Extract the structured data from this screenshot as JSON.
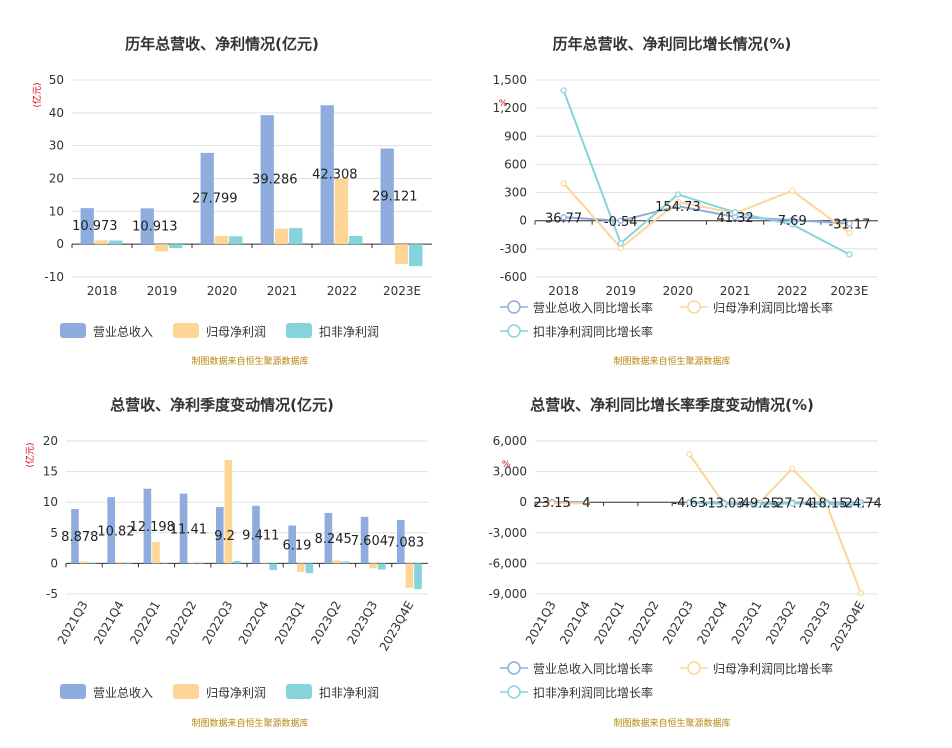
{
  "colors": {
    "revenue": "#8eacdd",
    "netprofit": "#fdd597",
    "deducted": "#85d4db",
    "grid": "#e0e0e0",
    "axis": "#333333",
    "source": "#b8860b",
    "unit": "#cc0000"
  },
  "source_note": "制图数据来自恒生聚源数据库",
  "chart_data": [
    {
      "type": "bar",
      "title": "历年总营收、净利情况(亿元)",
      "unit_label": "(亿元)",
      "categories": [
        "2018",
        "2019",
        "2020",
        "2021",
        "2022",
        "2023E"
      ],
      "ylim": [
        -10,
        50
      ],
      "yticks": [
        -10,
        0,
        10,
        20,
        30,
        40,
        50
      ],
      "series": [
        {
          "name": "营业总收入",
          "values": [
            10.973,
            10.913,
            27.799,
            39.286,
            42.308,
            29.121
          ]
        },
        {
          "name": "归母净利润",
          "values": [
            1.2,
            -2.2,
            2.5,
            4.7,
            20.0,
            -6.0
          ]
        },
        {
          "name": "扣非净利润",
          "values": [
            1.1,
            -1.2,
            2.4,
            4.9,
            2.5,
            -6.7
          ]
        }
      ],
      "data_labels": [
        "10.973",
        "10.913",
        "27.799",
        "39.286",
        "42.308",
        "29.121"
      ],
      "legend": "bottom",
      "grid": true
    },
    {
      "type": "line",
      "title": "历年总营收、净利同比增长情况(%)",
      "unit_label": "%",
      "categories": [
        "2018",
        "2019",
        "2020",
        "2021",
        "2022",
        "2023E"
      ],
      "ylim": [
        -600,
        1500
      ],
      "yticks": [
        -600,
        -300,
        0,
        300,
        600,
        900,
        1200,
        1500
      ],
      "ytick_labels": [
        "-600",
        "-300",
        "0",
        "300",
        "600",
        "900",
        "1,200",
        "1,500"
      ],
      "series": [
        {
          "name": "营业总收入同比增长率",
          "values": [
            36.77,
            -0.54,
            154.73,
            41.32,
            7.69,
            -31.17
          ]
        },
        {
          "name": "归母净利润同比增长率",
          "values": [
            400,
            -290,
            200,
            80,
            320,
            -130
          ]
        },
        {
          "name": "扣非净利润同比增长率",
          "values": [
            1390,
            -240,
            280,
            90,
            -40,
            -360
          ]
        }
      ],
      "data_labels": [
        "36.77",
        "-0.54",
        "154.73",
        "41.32",
        "7.69",
        "-31.17"
      ],
      "legend": "bottom",
      "grid": true
    },
    {
      "type": "bar",
      "title": "总营收、净利季度变动情况(亿元)",
      "unit_label": "(亿元)",
      "categories": [
        "2021Q3",
        "2021Q4",
        "2022Q1",
        "2022Q2",
        "2022Q3",
        "2022Q4",
        "2023Q1",
        "2023Q2",
        "2023Q3",
        "2023Q4E"
      ],
      "ylim": [
        -5,
        20
      ],
      "yticks": [
        -5,
        0,
        5,
        10,
        15,
        20
      ],
      "series": [
        {
          "name": "营业总收入",
          "values": [
            8.878,
            10.82,
            12.198,
            11.41,
            9.2,
            9.411,
            6.19,
            8.245,
            7.604,
            7.083
          ]
        },
        {
          "name": "归母净利润",
          "values": [
            0.3,
            0.2,
            3.5,
            0.1,
            16.9,
            0.1,
            -1.4,
            0.5,
            -0.8,
            -4.0
          ]
        },
        {
          "name": "扣非净利润",
          "values": [
            0.1,
            0.1,
            0.1,
            0.0,
            0.4,
            -1.1,
            -1.6,
            0.3,
            -1.0,
            -4.2
          ]
        }
      ],
      "data_labels": [
        "8.878",
        "10.82",
        "12.198",
        "11.41",
        "9.2",
        "9.411",
        "6.19",
        "8.245",
        "7.604",
        "7.083"
      ],
      "legend": "bottom",
      "grid": true
    },
    {
      "type": "line",
      "title": "总营收、净利同比增长率季度变动情况(%)",
      "unit_label": "%",
      "categories": [
        "2021Q3",
        "2021Q4",
        "2022Q1",
        "2022Q2",
        "2022Q3",
        "2022Q4",
        "2023Q1",
        "2023Q2",
        "2023Q3",
        "2023Q4E"
      ],
      "ylim": [
        -9000,
        6000
      ],
      "yticks": [
        -9000,
        -6000,
        -3000,
        0,
        3000,
        6000
      ],
      "ytick_labels": [
        "-9,000",
        "-6,000",
        "-3,000",
        "0",
        "3,000",
        "6,000"
      ],
      "series": [
        {
          "name": "营业总收入同比增长率",
          "values": [
            23.15,
            4,
            null,
            null,
            -4.63,
            -13.03,
            -49.25,
            -27.74,
            -18.15,
            -24.74
          ]
        },
        {
          "name": "归母净利润同比增长率",
          "values": [
            -100,
            -100,
            null,
            null,
            4700,
            -100,
            -200,
            3300,
            -200,
            -8900
          ]
        },
        {
          "name": "扣非净利润同比增长率",
          "values": [
            null,
            null,
            null,
            null,
            -50,
            -150,
            -250,
            -100,
            -200,
            -300
          ]
        }
      ],
      "data_labels": [
        "23.15",
        "4",
        "",
        "",
        "-4.63",
        "-13.03",
        "-49.25",
        "-27.74",
        "-18.15",
        "-24.74"
      ],
      "legend": "bottom",
      "grid": true
    }
  ]
}
